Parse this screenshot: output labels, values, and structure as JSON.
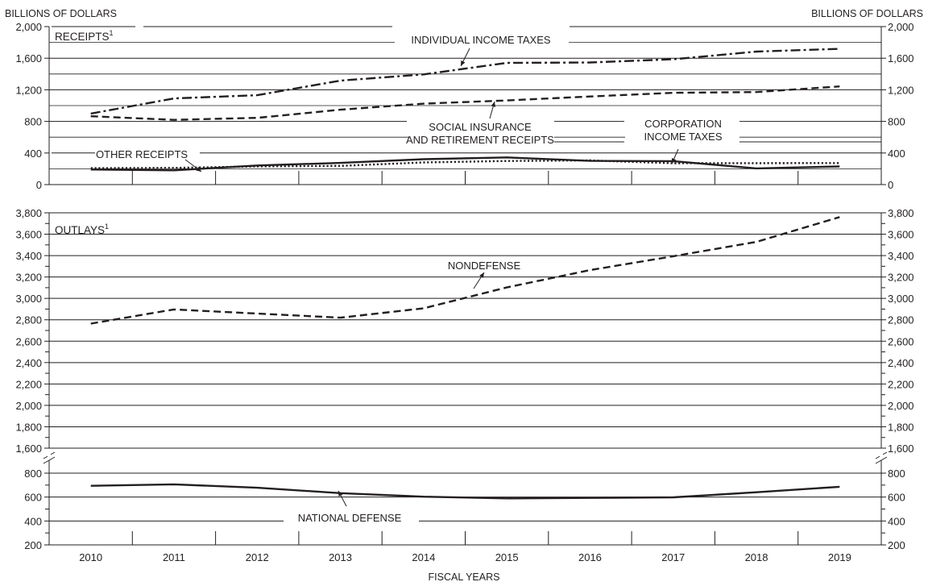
{
  "chart_data": [
    {
      "type": "line",
      "panel_label": "RECEIPTS",
      "panel_label_sup": "1",
      "unit_label_left": "BILLIONS OF DOLLARS",
      "unit_label_right": "BILLIONS OF DOLLARS",
      "x": [
        2010,
        2011,
        2012,
        2013,
        2014,
        2015,
        2016,
        2017,
        2018,
        2019
      ],
      "ylim": [
        0,
        2000
      ],
      "yticks": [
        "0",
        "400",
        "800",
        "1,200",
        "1,600",
        "2,000"
      ],
      "grid": true,
      "series": [
        {
          "name": "INDIVIDUAL INCOME TAXES",
          "style": "dash-dot",
          "values": [
            899,
            1091,
            1132,
            1316,
            1395,
            1541,
            1546,
            1587,
            1684,
            1718
          ]
        },
        {
          "name": "SOCIAL INSURANCE AND RETIREMENT RECEIPTS",
          "style": "dashed",
          "values": [
            865,
            819,
            845,
            948,
            1024,
            1065,
            1115,
            1162,
            1171,
            1243
          ]
        },
        {
          "name": "CORPORATION INCOME TAXES",
          "style": "solid",
          "values": [
            191,
            181,
            242,
            274,
            321,
            344,
            300,
            297,
            205,
            230
          ]
        },
        {
          "name": "OTHER RECEIPTS",
          "style": "dotted",
          "values": [
            208,
            211,
            230,
            237,
            281,
            299,
            306,
            270,
            271,
            272
          ]
        }
      ],
      "annotations": [
        {
          "lines": [
            "INDIVIDUAL INCOME TAXES"
          ]
        },
        {
          "lines": [
            "SOCIAL INSURANCE",
            "AND RETIREMENT RECEIPTS"
          ]
        },
        {
          "lines": [
            "CORPORATION",
            "INCOME TAXES"
          ]
        },
        {
          "lines": [
            "OTHER RECEIPTS"
          ]
        }
      ]
    },
    {
      "type": "line",
      "panel_label": "OUTLAYS",
      "panel_label_sup": "1",
      "x": [
        2010,
        2011,
        2012,
        2013,
        2014,
        2015,
        2016,
        2017,
        2018,
        2019
      ],
      "ylim_upper": [
        1600,
        3800
      ],
      "yticks_upper": [
        "1,600",
        "1,800",
        "2,000",
        "2,200",
        "2,400",
        "2,600",
        "2,800",
        "3,000",
        "3,200",
        "3,400",
        "3,600",
        "3,800"
      ],
      "ylim_lower": [
        200,
        800
      ],
      "yticks_lower": [
        "200",
        "400",
        "600",
        "800"
      ],
      "broken_axis": true,
      "grid": true,
      "xlabel": "FISCAL YEARS",
      "xtick_labels": [
        "2010",
        "2011",
        "2012",
        "2013",
        "2014",
        "2015",
        "2016",
        "2017",
        "2018",
        "2019"
      ],
      "series": [
        {
          "name": "NONDEFENSE",
          "style": "dashed",
          "values": [
            2764,
            2897,
            2858,
            2820,
            2907,
            3102,
            3264,
            3394,
            3528,
            3760
          ]
        },
        {
          "name": "NATIONAL DEFENSE",
          "style": "solid",
          "values": [
            694,
            706,
            678,
            633,
            603,
            589,
            593,
            598,
            640,
            686
          ]
        }
      ],
      "annotations": [
        {
          "lines": [
            "NONDEFENSE"
          ]
        },
        {
          "lines": [
            "NATIONAL DEFENSE"
          ]
        }
      ]
    }
  ]
}
